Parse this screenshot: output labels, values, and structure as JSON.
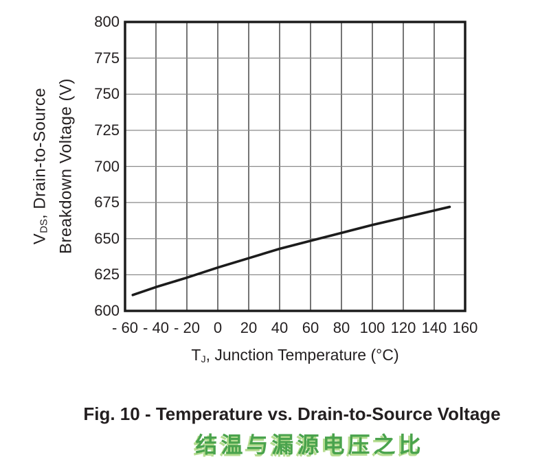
{
  "figure": {
    "caption": "Fig. 10 - Temperature vs. Drain-to-Source Voltage",
    "caption_zh": "结温与漏源电压之比"
  },
  "axes": {
    "y_label_line1": {
      "prefix": "V",
      "sub": "DS",
      "rest": ", Drain-to-Source"
    },
    "y_label_line2": "Breakdown Voltage (V)",
    "x_label": {
      "prefix": "T",
      "sub": "J",
      "rest": ", Junction Temperature (°C)"
    }
  },
  "colors": {
    "text": "#231f20",
    "grid_vertical": "#3a3a3a",
    "grid_horizontal": "#8a8a8a",
    "plot_border": "#1c1c1c",
    "curve": "#1c1c1c",
    "caption_zh_fill": "#4aa34d",
    "caption_zh_shadow": "#b5dc90"
  },
  "chart_data": {
    "type": "line",
    "title": "Fig. 10 - Temperature vs. Drain-to-Source Voltage",
    "title_zh": "结温与漏源电压之比",
    "xlabel": "TJ, Junction Temperature (°C)",
    "ylabel": "VDS, Drain-to-Source Breakdown Voltage (V)",
    "xlim": [
      -60,
      160
    ],
    "ylim": [
      600,
      800
    ],
    "grid": true,
    "legend": false,
    "x_ticks": {
      "values": [
        -60,
        -40,
        -20,
        0,
        20,
        40,
        60,
        80,
        100,
        120,
        140,
        160
      ],
      "labels": [
        "- 60",
        "- 40",
        "- 20",
        "0",
        "20",
        "40",
        "60",
        "80",
        "100",
        "120",
        "140",
        "160"
      ]
    },
    "y_ticks": {
      "values": [
        600,
        625,
        650,
        675,
        700,
        725,
        750,
        775,
        800
      ],
      "labels": [
        "600",
        "625",
        "650",
        "675",
        "700",
        "725",
        "750",
        "775",
        "800"
      ]
    },
    "series": [
      {
        "name": "drain-to-source-breakdown-voltage",
        "x": [
          -55,
          -40,
          -20,
          0,
          20,
          40,
          60,
          80,
          100,
          120,
          140,
          150
        ],
        "y": [
          611,
          616.5,
          623,
          630,
          636.5,
          643,
          648.5,
          654,
          659.5,
          664.5,
          669.5,
          672
        ]
      }
    ]
  }
}
